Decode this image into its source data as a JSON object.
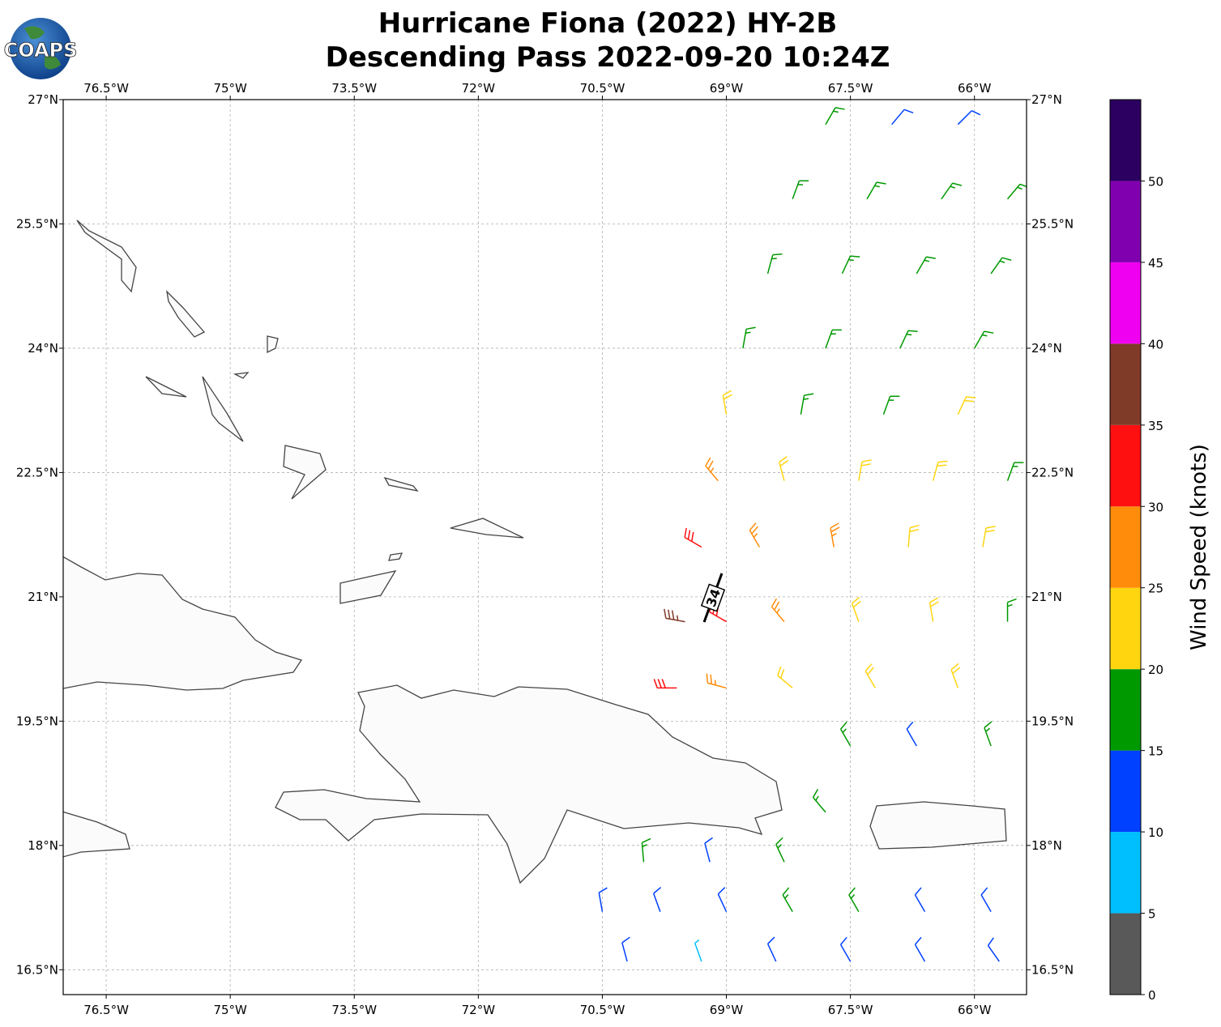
{
  "chart_data": {
    "type": "wind-barb-map",
    "title": [
      "Hurricane Fiona (2022) HY-2B",
      "Descending Pass 2022-09-20 10:24Z"
    ],
    "logo_text": "COAPS",
    "center_label": "34",
    "xlim": [
      -77.02,
      -65.37
    ],
    "ylim": [
      16.2,
      27
    ],
    "xticks": [
      {
        "value": -76.5,
        "label": "76.5°W"
      },
      {
        "value": -75,
        "label": "75°W"
      },
      {
        "value": -73.5,
        "label": "73.5°W"
      },
      {
        "value": -72,
        "label": "72°W"
      },
      {
        "value": -70.5,
        "label": "70.5°W"
      },
      {
        "value": -69,
        "label": "69°W"
      },
      {
        "value": -67.5,
        "label": "67.5°W"
      },
      {
        "value": -66,
        "label": "66°W"
      }
    ],
    "yticks": [
      {
        "value": 16.5,
        "label": "16.5°N"
      },
      {
        "value": 18,
        "label": "18°N"
      },
      {
        "value": 19.5,
        "label": "19.5°N"
      },
      {
        "value": 21,
        "label": "21°N"
      },
      {
        "value": 22.5,
        "label": "22.5°N"
      },
      {
        "value": 24,
        "label": "24°N"
      },
      {
        "value": 25.5,
        "label": "25.5°N"
      },
      {
        "value": 27,
        "label": "27°N"
      }
    ],
    "grid": true,
    "colorbar": {
      "label": "Wind Speed (knots)",
      "bounds": [
        0,
        5,
        10,
        15,
        20,
        25,
        30,
        35,
        40,
        45,
        50,
        55
      ],
      "colors": [
        "#595959",
        "#00bfff",
        "#0040ff",
        "#009900",
        "#ffd510",
        "#ff8c0a",
        "#ff1010",
        "#7f3a28",
        "#f000f0",
        "#8000b0",
        "#2c0060"
      ],
      "ticks": [
        0,
        5,
        10,
        15,
        20,
        25,
        30,
        35,
        40,
        45,
        50
      ]
    },
    "barbs": {
      "lon": [
        -67.8,
        -67,
        -66.2,
        -68.2,
        -67.3,
        -66.4,
        -65.6,
        -68.5,
        -67.6,
        -66.7,
        -65.8,
        -68.8,
        -67.8,
        -66.9,
        -66,
        -69,
        -68.1,
        -67.1,
        -66.2,
        -69.1,
        -68.3,
        -67.4,
        -66.5,
        -65.6,
        -69.3,
        -68.6,
        -67.7,
        -66.8,
        -65.9,
        -69.5,
        -69,
        -68.3,
        -67.4,
        -66.5,
        -65.6,
        -69.6,
        -69,
        -68.2,
        -67.2,
        -66.2,
        -67.5,
        -66.7,
        -65.8,
        -67.8,
        -70.5,
        -69.8,
        -69,
        -68.2,
        -67.4,
        -66.6,
        -65.8,
        -70.2,
        -69.3,
        -68.4,
        -67.5,
        -66.6,
        -65.7,
        -70,
        -69.2,
        -68.3
      ],
      "lat": [
        26.7,
        26.7,
        26.7,
        25.8,
        25.8,
        25.8,
        25.8,
        24.9,
        24.9,
        24.9,
        24.9,
        24,
        24,
        24,
        24,
        23.2,
        23.2,
        23.2,
        23.2,
        22.4,
        22.4,
        22.4,
        22.4,
        22.4,
        21.6,
        21.6,
        21.6,
        21.6,
        21.6,
        20.7,
        20.7,
        20.7,
        20.7,
        20.7,
        20.7,
        19.9,
        19.9,
        19.9,
        19.9,
        19.9,
        19.2,
        19.2,
        19.2,
        18.4,
        17.2,
        17.2,
        17.2,
        17.2,
        17.2,
        17.2,
        17.2,
        16.6,
        16.6,
        16.6,
        16.6,
        16.6,
        16.6,
        17.8,
        17.8,
        17.8
      ],
      "speed": [
        17,
        13,
        12,
        17,
        17,
        17,
        15,
        17,
        17,
        18,
        17,
        17,
        18,
        17,
        18,
        22,
        18,
        17,
        21,
        27,
        24,
        23,
        22,
        18,
        31,
        27,
        26,
        23,
        22,
        37,
        33,
        27,
        22,
        22,
        18,
        33,
        27,
        22,
        22,
        21,
        17,
        13,
        17,
        17,
        13,
        12,
        12,
        15,
        17,
        14,
        12,
        12,
        8,
        12,
        12,
        13,
        12,
        17,
        13,
        17
      ],
      "direction": [
        30,
        40,
        45,
        20,
        30,
        35,
        40,
        15,
        25,
        30,
        35,
        10,
        20,
        25,
        30,
        350,
        10,
        20,
        25,
        320,
        345,
        10,
        15,
        20,
        300,
        330,
        350,
        5,
        10,
        280,
        300,
        320,
        340,
        350,
        0,
        270,
        285,
        310,
        330,
        340,
        330,
        330,
        340,
        320,
        350,
        340,
        335,
        330,
        330,
        330,
        330,
        345,
        340,
        335,
        330,
        330,
        325,
        355,
        345,
        335
      ]
    }
  }
}
